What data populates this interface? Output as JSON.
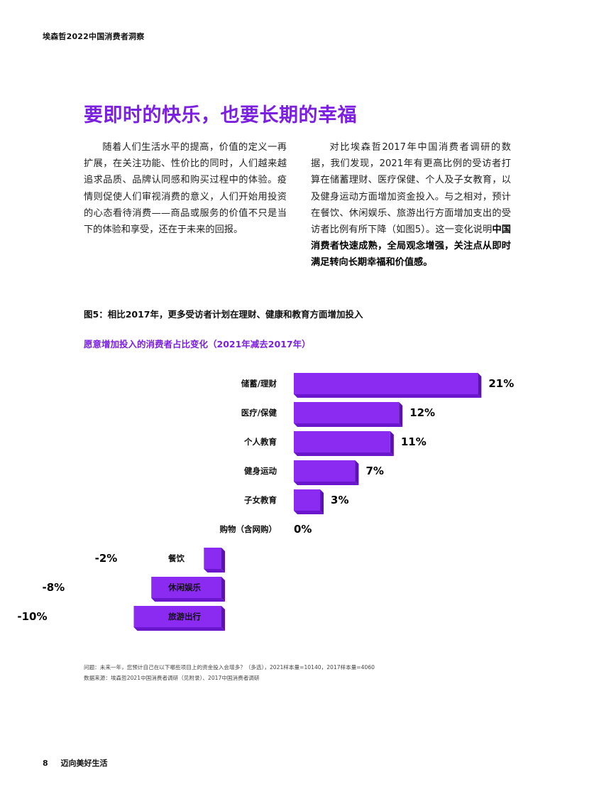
{
  "header": {
    "title": "埃森哲2022中国消费者洞察"
  },
  "main_title": "要即时的快乐，也要长期的幸福",
  "paragraph_left": "随着人们生活水平的提高，价值的定义一再扩展，在关注功能、性价比的同时，人们越来越追求品质、品牌认同感和购买过程中的体验。疫情则促使人们审视消费的意义，人们开始用投资的心态看待消费——商品或服务的价值不只是当下的体验和享受，还在于未来的回报。",
  "paragraph_right": {
    "text": "对比埃森哲2017年中国消费者调研的数据，我们发现，2021年有更高比例的受访者打算在储蓄理财、医疗保健、个人及子女教育，以及健身运动方面增加资金投入。与之相对，预计在餐饮、休闲娱乐、旅游出行方面增加支出的受访者比例有所下降（如图5）。这一变化说明",
    "bold": "中国消费者快速成熟，全局观念增强，关注点从即时满足转向长期幸福和价值感。"
  },
  "figure": {
    "title": "图5：相比2017年，更多受访者计划在理财、健康和教育方面增加投入"
  },
  "chart_data": {
    "type": "bar",
    "orientation": "horizontal",
    "title": "愿意增加投入的消费者占比变化（2021年减去2017年）",
    "categories": [
      "储蓄/理财",
      "医疗/保健",
      "个人教育",
      "健身运动",
      "子女教育",
      "购物（含网购）",
      "餐饮",
      "休闲娱乐",
      "旅游出行"
    ],
    "values": [
      21,
      12,
      11,
      7,
      3,
      0,
      -2,
      -8,
      -10
    ],
    "value_labels": [
      "21%",
      "12%",
      "11%",
      "7%",
      "3%",
      "0%",
      "-2%",
      "-8%",
      "-10%"
    ],
    "unit": "%",
    "colors": {
      "bar": "#8B2BF2",
      "bar_side": "#5A12B0",
      "bar_top": "#6A16CC"
    }
  },
  "footnotes": {
    "question": "问题：未来一年，您预计自己在以下哪些项目上的资金投入会增多？（多选），2021样本量=10140，2017样本量=4060",
    "source": "数据来源：埃森哲2021中国消费者调研（见附录）、2017中国消费者调研"
  },
  "footer": {
    "page_number": "8",
    "section": "迈向美好生活"
  }
}
